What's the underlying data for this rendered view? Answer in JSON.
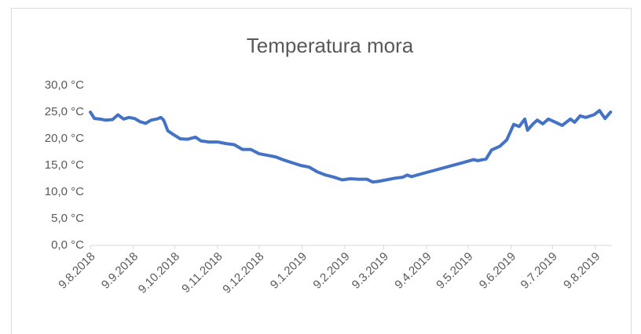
{
  "chart_data": {
    "type": "line",
    "title": "Temperatura mora",
    "x": [
      "2018-08-09",
      "2018-08-12",
      "2018-08-16",
      "2018-08-20",
      "2018-08-25",
      "2018-08-29",
      "2018-09-02",
      "2018-09-06",
      "2018-09-10",
      "2018-09-14",
      "2018-09-18",
      "2018-09-22",
      "2018-09-26",
      "2018-09-29",
      "2018-10-01",
      "2018-10-04",
      "2018-10-08",
      "2018-10-13",
      "2018-10-18",
      "2018-10-24",
      "2018-10-28",
      "2018-11-03",
      "2018-11-09",
      "2018-11-15",
      "2018-11-21",
      "2018-11-27",
      "2018-12-03",
      "2018-12-09",
      "2018-12-15",
      "2018-12-21",
      "2018-12-27",
      "2019-01-02",
      "2019-01-08",
      "2019-01-14",
      "2019-01-20",
      "2019-01-26",
      "2019-02-01",
      "2019-02-07",
      "2019-02-13",
      "2019-02-19",
      "2019-02-25",
      "2019-03-01",
      "2019-03-05",
      "2019-03-11",
      "2019-03-17",
      "2019-03-23",
      "2019-03-26",
      "2019-03-29",
      "2019-04-05",
      "2019-04-15",
      "2019-04-25",
      "2019-05-05",
      "2019-05-13",
      "2019-05-16",
      "2019-05-22",
      "2019-05-26",
      "2019-06-01",
      "2019-06-06",
      "2019-06-11",
      "2019-06-15",
      "2019-06-19",
      "2019-06-21",
      "2019-06-25",
      "2019-06-28",
      "2019-07-02",
      "2019-07-06",
      "2019-07-12",
      "2019-07-16",
      "2019-07-22",
      "2019-07-25",
      "2019-07-29",
      "2019-08-02",
      "2019-08-08",
      "2019-08-12",
      "2019-08-16",
      "2019-08-20"
    ],
    "series": [
      {
        "name": "Temperatura",
        "color": "#4472c4",
        "values": [
          25.0,
          23.8,
          23.7,
          23.5,
          23.6,
          24.5,
          23.7,
          24.0,
          23.8,
          23.2,
          22.9,
          23.5,
          23.7,
          24.0,
          23.5,
          21.5,
          20.8,
          20.0,
          19.9,
          20.3,
          19.6,
          19.4,
          19.4,
          19.1,
          18.9,
          18.0,
          18.0,
          17.2,
          16.9,
          16.6,
          16.0,
          15.5,
          15.0,
          14.7,
          13.8,
          13.2,
          12.8,
          12.3,
          12.5,
          12.4,
          12.4,
          11.9,
          12.0,
          12.3,
          12.6,
          12.8,
          13.2,
          12.9,
          13.4,
          14.1,
          14.8,
          15.5,
          16.1,
          15.9,
          16.2,
          17.9,
          18.6,
          19.8,
          22.7,
          22.3,
          23.7,
          21.6,
          22.8,
          23.5,
          22.8,
          23.7,
          23.0,
          22.5,
          23.7,
          23.1,
          24.3,
          24.0,
          24.5,
          25.3,
          23.8,
          25.0
        ]
      }
    ],
    "xlim": [
      "2018-08-09",
      "2019-08-21"
    ],
    "xticks": [
      {
        "value": "2018-08-09",
        "label": "9.8.2018"
      },
      {
        "value": "2018-09-09",
        "label": "9.9.2018"
      },
      {
        "value": "2018-10-09",
        "label": "9.10.2018"
      },
      {
        "value": "2018-11-09",
        "label": "9.11.2018"
      },
      {
        "value": "2018-12-09",
        "label": "9.12.2018"
      },
      {
        "value": "2019-01-09",
        "label": "9.1.2019"
      },
      {
        "value": "2019-02-09",
        "label": "9.2.2019"
      },
      {
        "value": "2019-03-09",
        "label": "9.3.2019"
      },
      {
        "value": "2019-04-09",
        "label": "9.4.2019"
      },
      {
        "value": "2019-05-09",
        "label": "9.5.2019"
      },
      {
        "value": "2019-06-09",
        "label": "9.6.2019"
      },
      {
        "value": "2019-07-09",
        "label": "9.7.2019"
      },
      {
        "value": "2019-08-09",
        "label": "9.8.2019"
      }
    ],
    "ylim": [
      0,
      30
    ],
    "yticks": [
      {
        "value": 0,
        "label": "0,0 °C"
      },
      {
        "value": 5,
        "label": "5,0 °C"
      },
      {
        "value": 10,
        "label": "10,0 °C"
      },
      {
        "value": 15,
        "label": "15,0 °C"
      },
      {
        "value": 20,
        "label": "20,0 °C"
      },
      {
        "value": 25,
        "label": "25,0 °C"
      },
      {
        "value": 30,
        "label": "30,0 °C"
      }
    ],
    "grid": false
  }
}
